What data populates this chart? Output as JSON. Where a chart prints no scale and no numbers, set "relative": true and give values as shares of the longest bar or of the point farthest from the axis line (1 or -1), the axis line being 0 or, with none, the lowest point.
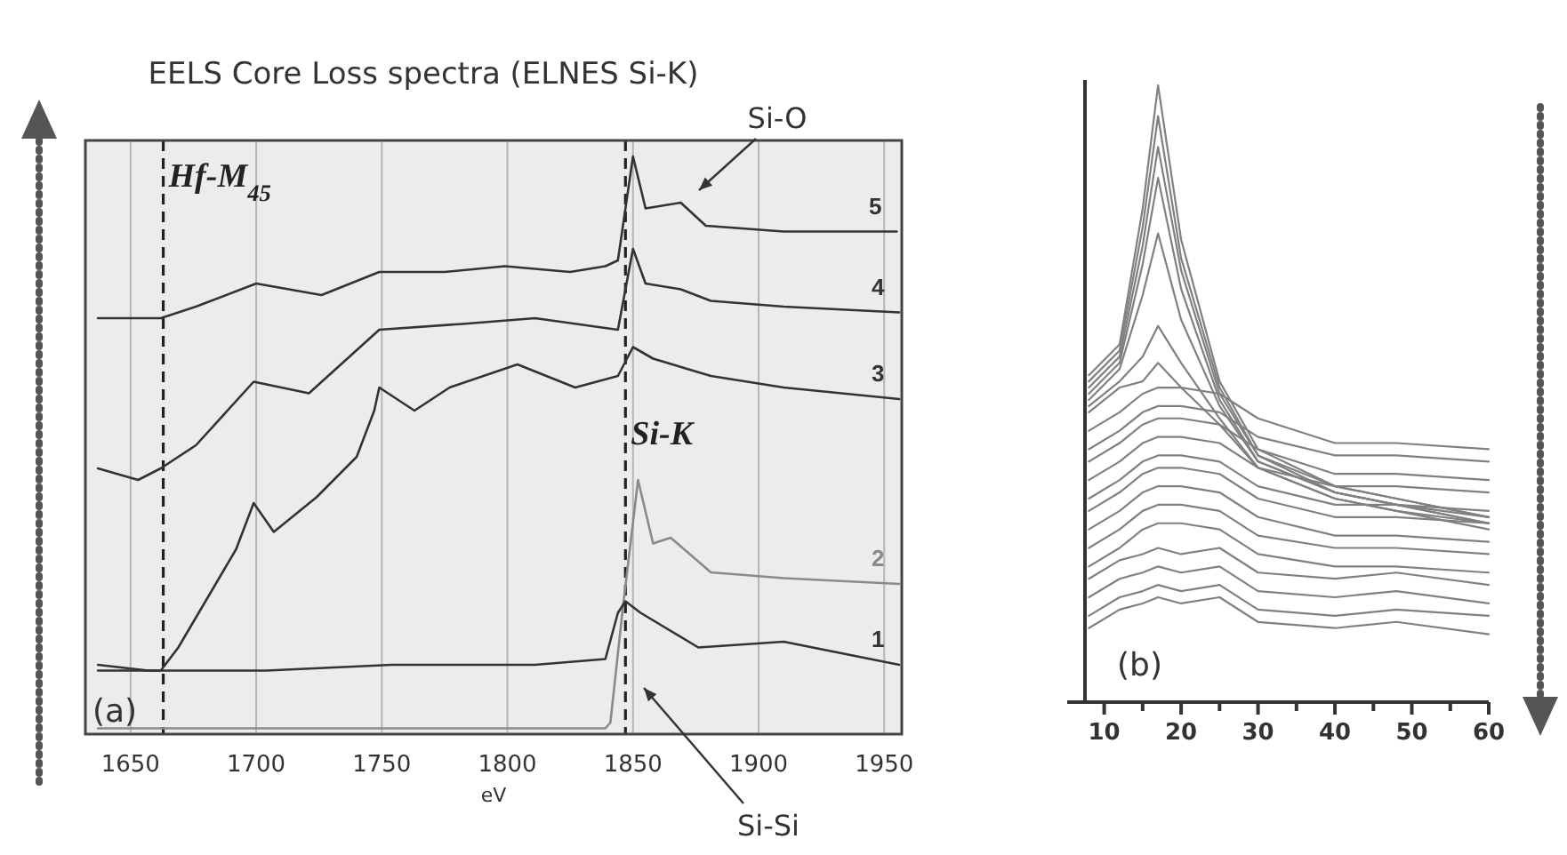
{
  "chart_data": [
    {
      "type": "line",
      "title": "EELS Core Loss spectra (ELNES Si-K)",
      "xlabel": "eV",
      "relative": true,
      "xlim": [
        1632,
        1957
      ],
      "xticks": [
        1650,
        1700,
        1750,
        1800,
        1850,
        1900,
        1950
      ],
      "grid": "x",
      "ref_lines": [
        {
          "axis": "x",
          "value": 1663,
          "label": "Hf-M$_{45}$",
          "line_style": "dashed",
          "color": "#222222"
        },
        {
          "axis": "x",
          "value": 1847,
          "label": "Si-K",
          "line_style": "dashed",
          "color": "#222222"
        }
      ],
      "annotations": [
        "Si-O",
        "Si-Si",
        "(a)"
      ],
      "series": [
        {
          "name": "5",
          "color": "#333333",
          "x": [
            1637,
            1662,
            1676,
            1700,
            1726,
            1749,
            1775,
            1799,
            1825,
            1839,
            1844,
            1850,
            1855,
            1869,
            1879,
            1910,
            1955
          ],
          "values": [
            0.72,
            0.72,
            0.74,
            0.78,
            0.76,
            0.8,
            0.8,
            0.81,
            0.8,
            0.81,
            0.82,
            1.0,
            0.91,
            0.92,
            0.88,
            0.87,
            0.87
          ]
        },
        {
          "name": "4",
          "color": "#333333",
          "x": [
            1637,
            1653,
            1662,
            1676,
            1699,
            1721,
            1749,
            1782,
            1811,
            1844,
            1850,
            1855,
            1869,
            1881,
            1910,
            1956
          ],
          "values": [
            0.46,
            0.44,
            0.46,
            0.5,
            0.61,
            0.59,
            0.7,
            0.71,
            0.72,
            0.7,
            0.84,
            0.78,
            0.77,
            0.75,
            0.74,
            0.73
          ]
        },
        {
          "name": "3",
          "color": "#333333",
          "x": [
            1637,
            1657,
            1662,
            1669,
            1692,
            1699,
            1707,
            1724,
            1740,
            1747,
            1749,
            1763,
            1777,
            1804,
            1827,
            1844,
            1850,
            1858,
            1881,
            1910,
            1956
          ],
          "values": [
            0.12,
            0.11,
            0.11,
            0.15,
            0.32,
            0.4,
            0.35,
            0.41,
            0.48,
            0.56,
            0.6,
            0.56,
            0.6,
            0.64,
            0.6,
            0.62,
            0.67,
            0.65,
            0.62,
            0.6,
            0.58
          ]
        },
        {
          "name": "2",
          "color": "#8a8a8a",
          "x": [
            1637,
            1740,
            1839,
            1841,
            1846,
            1852,
            1858,
            1865,
            1881,
            1910,
            1956
          ],
          "values": [
            0.01,
            0.01,
            0.01,
            0.02,
            0.22,
            0.44,
            0.33,
            0.34,
            0.28,
            0.27,
            0.26
          ]
        },
        {
          "name": "1",
          "color": "#333333",
          "x": [
            1637,
            1655,
            1662,
            1704,
            1754,
            1811,
            1839,
            1844,
            1847,
            1853,
            1876,
            1910,
            1956
          ],
          "values": [
            0.11,
            0.11,
            0.11,
            0.11,
            0.12,
            0.12,
            0.13,
            0.21,
            0.23,
            0.21,
            0.15,
            0.16,
            0.12
          ]
        }
      ]
    },
    {
      "type": "line",
      "relative": true,
      "xlim": [
        7.5,
        60
      ],
      "xticks": [
        10,
        {
          "value": 15,
          "label": null
        },
        20,
        {
          "value": 25,
          "label": null
        },
        30,
        {
          "value": 35,
          "label": null
        },
        40,
        {
          "value": 45,
          "label": null
        },
        50,
        {
          "value": 55,
          "label": null
        },
        60
      ],
      "tick_labels": "x",
      "annotations": [
        "(b)"
      ],
      "x": [
        8,
        12,
        15,
        17,
        20,
        25,
        30,
        40,
        48,
        60
      ],
      "series": [
        {
          "color": "#808080",
          "values": [
            0.53,
            0.58,
            0.8,
            1.0,
            0.75,
            0.52,
            0.41,
            0.35,
            0.33,
            0.3
          ]
        },
        {
          "color": "#808080",
          "values": [
            0.52,
            0.57,
            0.77,
            0.95,
            0.72,
            0.51,
            0.4,
            0.35,
            0.33,
            0.3
          ]
        },
        {
          "color": "#808080",
          "values": [
            0.51,
            0.56,
            0.74,
            0.9,
            0.7,
            0.5,
            0.4,
            0.34,
            0.32,
            0.3
          ]
        },
        {
          "color": "#808080",
          "values": [
            0.5,
            0.55,
            0.71,
            0.85,
            0.67,
            0.49,
            0.39,
            0.34,
            0.32,
            0.29
          ]
        },
        {
          "color": "#808080",
          "values": [
            0.49,
            0.54,
            0.66,
            0.76,
            0.62,
            0.48,
            0.39,
            0.34,
            0.32,
            0.29
          ]
        },
        {
          "color": "#808080",
          "values": [
            0.48,
            0.52,
            0.56,
            0.61,
            0.55,
            0.46,
            0.38,
            0.33,
            0.31,
            0.29
          ]
        },
        {
          "color": "#808080",
          "values": [
            0.47,
            0.51,
            0.52,
            0.55,
            0.51,
            0.45,
            0.38,
            0.33,
            0.31,
            0.28
          ]
        },
        {
          "color": "#808080",
          "values": [
            0.44,
            0.47,
            0.5,
            0.51,
            0.51,
            0.5,
            0.46,
            0.42,
            0.42,
            0.41
          ]
        },
        {
          "color": "#808080",
          "values": [
            0.41,
            0.44,
            0.47,
            0.48,
            0.48,
            0.47,
            0.43,
            0.4,
            0.4,
            0.39
          ]
        },
        {
          "color": "#808080",
          "values": [
            0.39,
            0.42,
            0.45,
            0.46,
            0.46,
            0.45,
            0.41,
            0.37,
            0.37,
            0.36
          ]
        },
        {
          "color": "#808080",
          "values": [
            0.36,
            0.39,
            0.42,
            0.43,
            0.43,
            0.42,
            0.38,
            0.35,
            0.35,
            0.34
          ]
        },
        {
          "color": "#808080",
          "values": [
            0.33,
            0.36,
            0.39,
            0.4,
            0.4,
            0.39,
            0.35,
            0.32,
            0.32,
            0.31
          ]
        },
        {
          "color": "#808080",
          "values": [
            0.31,
            0.34,
            0.37,
            0.38,
            0.38,
            0.37,
            0.33,
            0.3,
            0.3,
            0.29
          ]
        },
        {
          "color": "#808080",
          "values": [
            0.28,
            0.31,
            0.34,
            0.35,
            0.35,
            0.34,
            0.3,
            0.27,
            0.27,
            0.26
          ]
        },
        {
          "color": "#808080",
          "values": [
            0.25,
            0.28,
            0.31,
            0.32,
            0.32,
            0.31,
            0.27,
            0.25,
            0.25,
            0.24
          ]
        },
        {
          "color": "#808080",
          "values": [
            0.22,
            0.25,
            0.28,
            0.29,
            0.29,
            0.28,
            0.24,
            0.22,
            0.22,
            0.21
          ]
        },
        {
          "color": "#808080",
          "values": [
            0.2,
            0.23,
            0.24,
            0.25,
            0.24,
            0.25,
            0.21,
            0.2,
            0.21,
            0.19
          ]
        },
        {
          "color": "#808080",
          "values": [
            0.17,
            0.2,
            0.21,
            0.22,
            0.21,
            0.22,
            0.18,
            0.17,
            0.18,
            0.16
          ]
        },
        {
          "color": "#808080",
          "values": [
            0.14,
            0.17,
            0.18,
            0.19,
            0.18,
            0.19,
            0.15,
            0.14,
            0.15,
            0.14
          ]
        },
        {
          "color": "#808080",
          "values": [
            0.12,
            0.15,
            0.16,
            0.17,
            0.16,
            0.17,
            0.13,
            0.12,
            0.13,
            0.11
          ]
        }
      ]
    }
  ]
}
